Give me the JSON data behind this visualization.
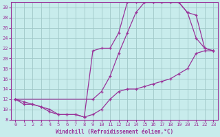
{
  "xlabel": "Windchill (Refroidissement éolien,°C)",
  "background_color": "#c8ecec",
  "grid_color": "#a0c8c8",
  "line_color": "#993399",
  "xlim": [
    -0.5,
    23.5
  ],
  "ylim": [
    8,
    31
  ],
  "xticks": [
    0,
    1,
    2,
    3,
    4,
    5,
    6,
    7,
    8,
    9,
    10,
    11,
    12,
    13,
    14,
    15,
    16,
    17,
    18,
    19,
    20,
    21,
    22,
    23
  ],
  "yticks": [
    8,
    10,
    12,
    14,
    16,
    18,
    20,
    22,
    24,
    26,
    28,
    30
  ],
  "line1_x": [
    0,
    1,
    2,
    3,
    4,
    5,
    6,
    7,
    8,
    9,
    10,
    11,
    12,
    13,
    14,
    15,
    16,
    17,
    18,
    19,
    20,
    21,
    22,
    23
  ],
  "line1_y": [
    12.0,
    11.0,
    11.0,
    10.5,
    9.5,
    9.0,
    9.0,
    9.0,
    8.5,
    9.0,
    10.0,
    12.0,
    13.5,
    14.0,
    14.0,
    14.5,
    15.0,
    15.5,
    16.0,
    17.0,
    18.0,
    21.0,
    21.5,
    21.5
  ],
  "line2_x": [
    0,
    1,
    2,
    3,
    4,
    5,
    6,
    7,
    8,
    9,
    10,
    11,
    12,
    13,
    14,
    15,
    16,
    17,
    18,
    19,
    20,
    21,
    22,
    23
  ],
  "line2_y": [
    12.0,
    11.5,
    11.0,
    10.5,
    10.0,
    9.0,
    9.0,
    9.0,
    8.5,
    21.5,
    22.0,
    22.0,
    25.0,
    31.0,
    31.0,
    31.0,
    31.0,
    31.0,
    31.0,
    31.0,
    29.0,
    28.5,
    22.0,
    21.5
  ],
  "line3_x": [
    0,
    9,
    10,
    11,
    12,
    13,
    14,
    15,
    16,
    17,
    18,
    19,
    20,
    21,
    22,
    23
  ],
  "line3_y": [
    12.0,
    12.0,
    13.5,
    16.5,
    21.0,
    25.0,
    29.0,
    31.0,
    31.0,
    31.0,
    31.0,
    31.0,
    29.0,
    24.0,
    22.0,
    21.5
  ]
}
